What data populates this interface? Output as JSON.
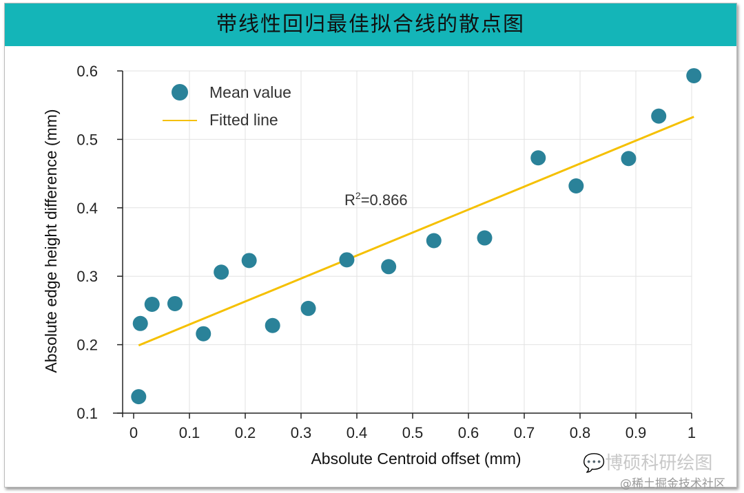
{
  "chart_data": {
    "type": "scatter",
    "title": "带线性回归最佳拟合线的散点图",
    "xlabel": "Absolute Centroid offset (mm)",
    "ylabel": "Absolute edge height difference (mm)",
    "xlim": [
      -0.02,
      1.0
    ],
    "ylim": [
      0.1,
      0.6
    ],
    "xticks": [
      "0",
      "0.1",
      "0.2",
      "0.3",
      "0.4",
      "0.5",
      "0.6",
      "0.7",
      "0.8",
      "0.9",
      "1"
    ],
    "yticks": [
      "0.1",
      "0.2",
      "0.3",
      "0.4",
      "0.5",
      "0.6"
    ],
    "grid": true,
    "legend_position": "top-left",
    "series": [
      {
        "name": "Mean value",
        "color": "#2a8299",
        "x": [
          0.009,
          0.012,
          0.033,
          0.074,
          0.125,
          0.157,
          0.207,
          0.249,
          0.313,
          0.382,
          0.457,
          0.538,
          0.629,
          0.725,
          0.793,
          0.887,
          0.941,
          1.004
        ],
        "y": [
          0.124,
          0.231,
          0.259,
          0.26,
          0.216,
          0.306,
          0.323,
          0.228,
          0.253,
          0.324,
          0.314,
          0.352,
          0.356,
          0.473,
          0.432,
          0.472,
          0.534,
          0.593
        ]
      },
      {
        "name": "Fitted line",
        "color": "#f5c000",
        "x": [
          0.009,
          1.004
        ],
        "y": [
          0.199,
          0.533
        ]
      }
    ],
    "annotation": {
      "base": "R",
      "sup": "2",
      "rest": "=0.866"
    }
  },
  "watermark": {
    "brand": "博硕科研绘图",
    "site": "@稀土掘金技术社区"
  }
}
